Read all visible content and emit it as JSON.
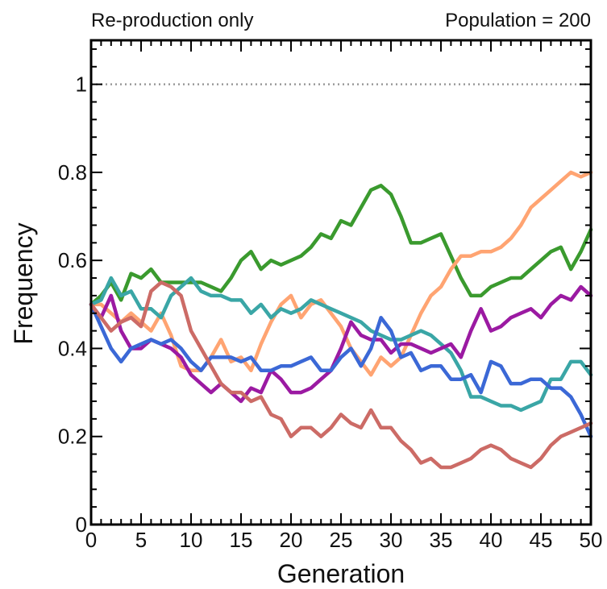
{
  "header": {
    "left": "Re-production only",
    "right": "Population = 200"
  },
  "chart_data": {
    "type": "line",
    "title": "",
    "xlabel": "Generation",
    "ylabel": "Frequency",
    "xlim": [
      0,
      50
    ],
    "ylim": [
      0,
      1.1
    ],
    "x_ticks": [
      0,
      5,
      10,
      15,
      20,
      25,
      30,
      35,
      40,
      45,
      50
    ],
    "x_tick_labels": [
      "0",
      "5",
      "10",
      "15",
      "20",
      "25",
      "30",
      "35",
      "40",
      "45",
      "50"
    ],
    "y_ticks": [
      0,
      0.2,
      0.4,
      0.6,
      0.8,
      1
    ],
    "y_tick_labels": [
      "0",
      "0.2",
      "0.4",
      "0.6",
      "0.8",
      "1"
    ],
    "reference_line": {
      "y": 1,
      "style": "dotted",
      "color": "#999999"
    },
    "grid": false,
    "legend": "none",
    "x": [
      0,
      1,
      2,
      3,
      4,
      5,
      6,
      7,
      8,
      9,
      10,
      11,
      12,
      13,
      14,
      15,
      16,
      17,
      18,
      19,
      20,
      21,
      22,
      23,
      24,
      25,
      26,
      27,
      28,
      29,
      30,
      31,
      32,
      33,
      34,
      35,
      36,
      37,
      38,
      39,
      40,
      41,
      42,
      43,
      44,
      45,
      46,
      47,
      48,
      49,
      50
    ],
    "series": [
      {
        "color": "#3a9a2e",
        "values": [
          0.5,
          0.52,
          0.55,
          0.51,
          0.57,
          0.56,
          0.58,
          0.55,
          0.55,
          0.55,
          0.55,
          0.55,
          0.54,
          0.53,
          0.56,
          0.6,
          0.62,
          0.58,
          0.6,
          0.59,
          0.6,
          0.61,
          0.63,
          0.66,
          0.65,
          0.69,
          0.68,
          0.72,
          0.76,
          0.77,
          0.75,
          0.7,
          0.64,
          0.64,
          0.65,
          0.66,
          0.61,
          0.56,
          0.52,
          0.52,
          0.54,
          0.55,
          0.56,
          0.56,
          0.58,
          0.6,
          0.62,
          0.63,
          0.58,
          0.62,
          0.67
        ]
      },
      {
        "color": "#ffa472",
        "values": [
          0.5,
          0.5,
          0.48,
          0.46,
          0.48,
          0.46,
          0.44,
          0.48,
          0.43,
          0.36,
          0.35,
          0.35,
          0.38,
          0.42,
          0.37,
          0.38,
          0.35,
          0.41,
          0.46,
          0.5,
          0.52,
          0.47,
          0.5,
          0.51,
          0.48,
          0.45,
          0.4,
          0.37,
          0.34,
          0.38,
          0.36,
          0.38,
          0.43,
          0.48,
          0.52,
          0.54,
          0.58,
          0.61,
          0.61,
          0.62,
          0.62,
          0.63,
          0.65,
          0.68,
          0.72,
          0.74,
          0.76,
          0.78,
          0.8,
          0.79,
          0.8
        ]
      },
      {
        "color": "#3aa6a6",
        "values": [
          0.5,
          0.51,
          0.56,
          0.52,
          0.53,
          0.49,
          0.49,
          0.47,
          0.52,
          0.54,
          0.56,
          0.53,
          0.52,
          0.52,
          0.51,
          0.51,
          0.48,
          0.5,
          0.47,
          0.49,
          0.48,
          0.49,
          0.51,
          0.5,
          0.49,
          0.48,
          0.47,
          0.46,
          0.44,
          0.43,
          0.42,
          0.42,
          0.43,
          0.44,
          0.43,
          0.41,
          0.39,
          0.35,
          0.29,
          0.29,
          0.28,
          0.27,
          0.27,
          0.26,
          0.27,
          0.28,
          0.33,
          0.33,
          0.37,
          0.37,
          0.34
        ]
      },
      {
        "color": "#9b1aa2",
        "values": [
          0.5,
          0.47,
          0.52,
          0.44,
          0.4,
          0.4,
          0.42,
          0.41,
          0.4,
          0.38,
          0.34,
          0.32,
          0.3,
          0.32,
          0.3,
          0.28,
          0.31,
          0.3,
          0.35,
          0.33,
          0.3,
          0.3,
          0.31,
          0.33,
          0.35,
          0.4,
          0.46,
          0.43,
          0.42,
          0.42,
          0.39,
          0.41,
          0.41,
          0.4,
          0.39,
          0.4,
          0.41,
          0.38,
          0.44,
          0.49,
          0.44,
          0.45,
          0.47,
          0.48,
          0.49,
          0.47,
          0.5,
          0.52,
          0.51,
          0.54,
          0.52
        ]
      },
      {
        "color": "#3b68d6",
        "values": [
          0.5,
          0.45,
          0.4,
          0.37,
          0.4,
          0.41,
          0.42,
          0.41,
          0.42,
          0.4,
          0.37,
          0.35,
          0.38,
          0.38,
          0.38,
          0.37,
          0.38,
          0.35,
          0.35,
          0.36,
          0.36,
          0.37,
          0.38,
          0.35,
          0.35,
          0.38,
          0.4,
          0.36,
          0.4,
          0.47,
          0.44,
          0.38,
          0.39,
          0.35,
          0.36,
          0.36,
          0.33,
          0.33,
          0.34,
          0.3,
          0.37,
          0.36,
          0.32,
          0.32,
          0.33,
          0.33,
          0.31,
          0.31,
          0.29,
          0.25,
          0.2
        ]
      },
      {
        "color": "#cc6b66",
        "values": [
          0.5,
          0.47,
          0.44,
          0.46,
          0.47,
          0.45,
          0.53,
          0.55,
          0.54,
          0.52,
          0.44,
          0.4,
          0.36,
          0.32,
          0.3,
          0.3,
          0.28,
          0.29,
          0.25,
          0.24,
          0.2,
          0.22,
          0.22,
          0.2,
          0.22,
          0.25,
          0.23,
          0.22,
          0.26,
          0.22,
          0.22,
          0.19,
          0.17,
          0.14,
          0.15,
          0.13,
          0.13,
          0.14,
          0.15,
          0.17,
          0.18,
          0.17,
          0.15,
          0.14,
          0.13,
          0.15,
          0.18,
          0.2,
          0.21,
          0.22,
          0.23
        ]
      }
    ]
  }
}
